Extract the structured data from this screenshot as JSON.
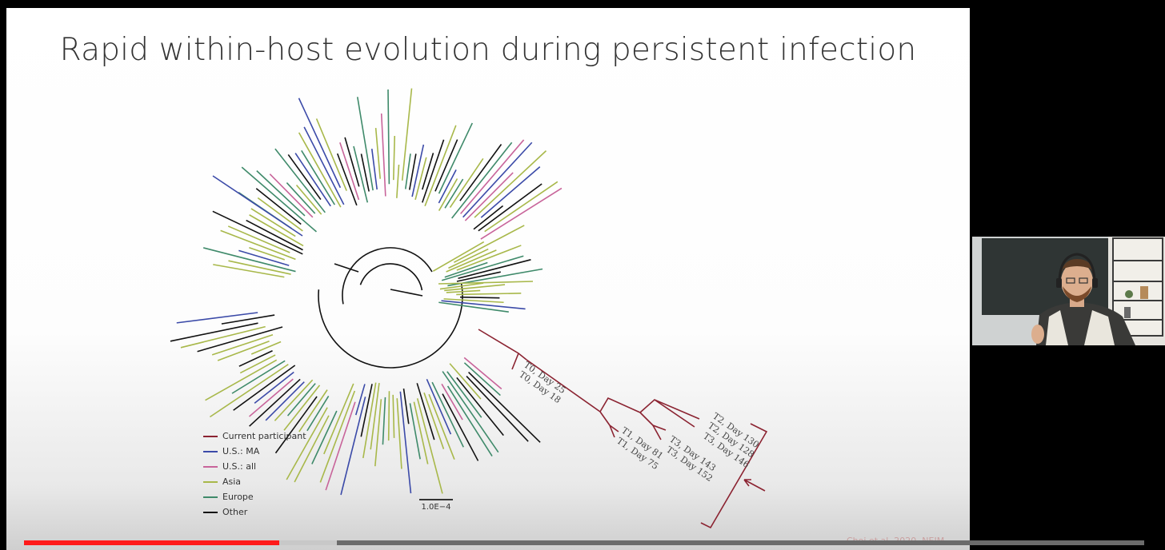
{
  "slide": {
    "title": "Rapid within-host evolution during persistent infection",
    "citation": "Choi et al. 2020, NEJM.",
    "scale_bar_label": "1.0E−4"
  },
  "legend": [
    {
      "label": "Current participant",
      "color": "#8b2331"
    },
    {
      "label": "U.S.: MA",
      "color": "#3b4aa8"
    },
    {
      "label": "U.S.: all",
      "color": "#c8649a"
    },
    {
      "label": "Asia",
      "color": "#a8b84a"
    },
    {
      "label": "Europe",
      "color": "#3f8a6a"
    },
    {
      "label": "Other",
      "color": "#111111"
    }
  ],
  "participant_samples": [
    "T0, Day 25",
    "T0, Day 18",
    "T1, Day 81",
    "T1, Day 75",
    "T3, Day 143",
    "T3, Day 152",
    "T2, Day 130",
    "T2, Day 128",
    "T3, Day 146"
  ],
  "annotation": {
    "marker": "red-arrow",
    "color": "#8b2331"
  },
  "video": {
    "progress_played_pct": 22.8,
    "progress_buffered_pct": 27.9,
    "played_color": "#ff1a1a"
  },
  "webcam": {
    "description_icon": "presenter-webcam"
  }
}
